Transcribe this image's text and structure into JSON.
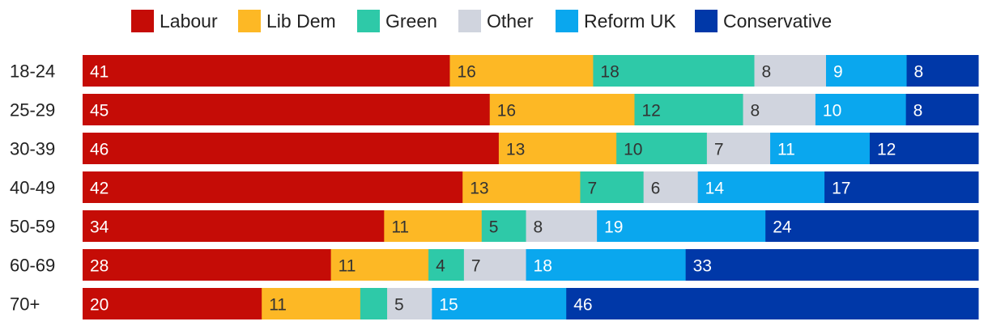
{
  "chart_data": {
    "type": "bar",
    "orientation": "horizontal",
    "stacked": true,
    "normalized_percent": true,
    "title": "",
    "xlabel": "",
    "ylabel": "",
    "legend_position": "top",
    "categories": [
      "18-24",
      "25-29",
      "30-39",
      "40-49",
      "50-59",
      "60-69",
      "70+"
    ],
    "series": [
      {
        "name": "Labour",
        "color": "#c50c06",
        "label_color": "#ffffff",
        "values": [
          41,
          45,
          46,
          42,
          34,
          28,
          20
        ],
        "show_labels": [
          true,
          true,
          true,
          true,
          true,
          true,
          true
        ]
      },
      {
        "name": "Lib Dem",
        "color": "#fdb825",
        "label_color": "#333333",
        "values": [
          16,
          16,
          13,
          13,
          11,
          11,
          11
        ],
        "show_labels": [
          true,
          true,
          true,
          true,
          true,
          true,
          true
        ]
      },
      {
        "name": "Green",
        "color": "#2ec9a8",
        "label_color": "#333333",
        "values": [
          18,
          12,
          10,
          7,
          5,
          4,
          3
        ],
        "show_labels": [
          true,
          true,
          true,
          true,
          true,
          true,
          false
        ]
      },
      {
        "name": "Other",
        "color": "#d0d4de",
        "label_color": "#333333",
        "values": [
          8,
          8,
          7,
          6,
          8,
          7,
          5
        ],
        "show_labels": [
          true,
          true,
          true,
          true,
          true,
          true,
          true
        ]
      },
      {
        "name": "Reform UK",
        "color": "#0aa7ee",
        "label_color": "#ffffff",
        "values": [
          9,
          10,
          11,
          14,
          19,
          18,
          15
        ],
        "show_labels": [
          true,
          true,
          true,
          true,
          true,
          true,
          true
        ]
      },
      {
        "name": "Conservative",
        "color": "#0038a8",
        "label_color": "#ffffff",
        "values": [
          8,
          8,
          12,
          17,
          24,
          33,
          46
        ],
        "show_labels": [
          true,
          true,
          true,
          true,
          true,
          true,
          true
        ]
      }
    ]
  }
}
